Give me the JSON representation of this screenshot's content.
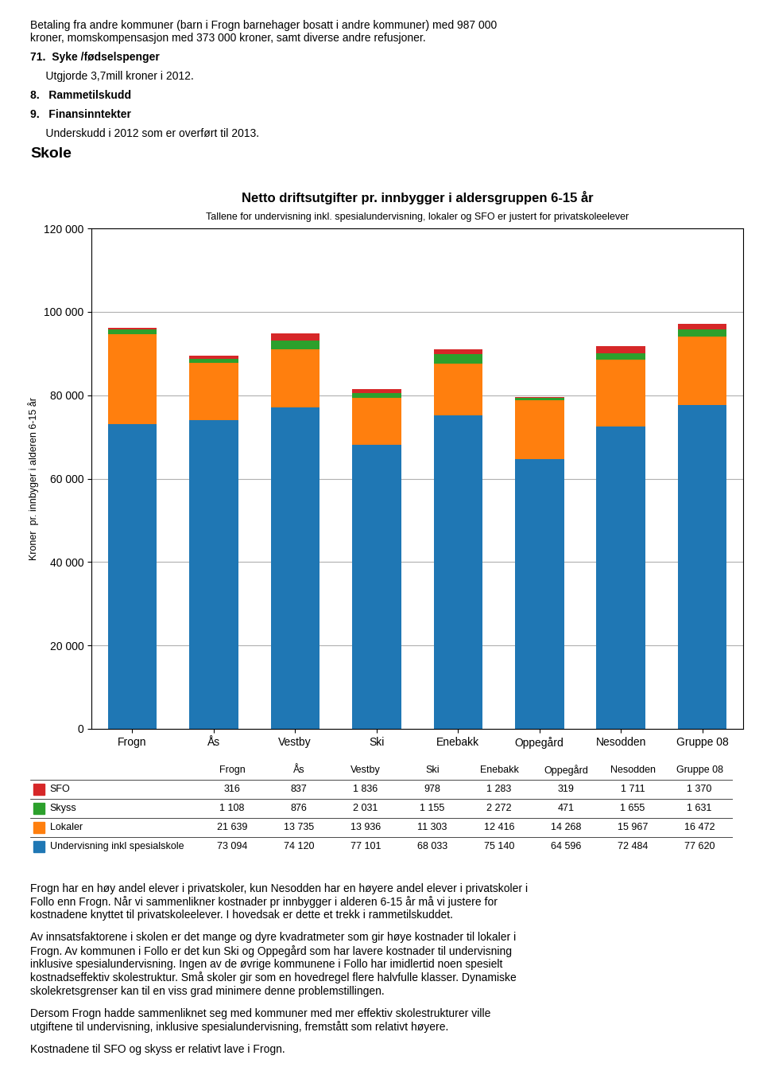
{
  "chart_data": {
    "type": "bar",
    "stacked": true,
    "grid": true,
    "title": "Netto driftsutgifter pr. innbygger i aldersgruppen 6-15 år",
    "subtitle": "Tallene for undervisning inkl. spesialundervisning, lokaler og SFO er justert for privatskoleelever",
    "ylabel": "Kroner  pr. innbyger i alderen 6-15 år",
    "categories": [
      "Frogn",
      "Ås",
      "Vestby",
      "Ski",
      "Enebakk",
      "Oppegård",
      "Nesodden",
      "Gruppe 08"
    ],
    "series": [
      {
        "name": "Undervisning inkl spesialskole",
        "values": [
          73094,
          74120,
          77101,
          68033,
          75140,
          64596,
          72484,
          77620
        ],
        "value_labels": [
          "73 094",
          "74 120",
          "77 101",
          "68 033",
          "75 140",
          "64 596",
          "72 484",
          "77 620"
        ]
      },
      {
        "name": "Lokaler",
        "values": [
          21639,
          13735,
          13936,
          11303,
          12416,
          14268,
          15967,
          16472
        ],
        "value_labels": [
          "21 639",
          "13 735",
          "13 936",
          "11 303",
          "12 416",
          "14 268",
          "15 967",
          "16 472"
        ]
      },
      {
        "name": "Skyss",
        "values": [
          1108,
          876,
          2031,
          1155,
          2272,
          471,
          1655,
          1631
        ],
        "value_labels": [
          "1 108",
          "876",
          "2 031",
          "1 155",
          "2 272",
          "471",
          "1 655",
          "1 631"
        ]
      },
      {
        "name": "SFO",
        "values": [
          316,
          837,
          1836,
          978,
          1283,
          319,
          1711,
          1370
        ],
        "value_labels": [
          "316",
          "837",
          "1 836",
          "978",
          "1 283",
          "319",
          "1 711",
          "1 370"
        ]
      }
    ],
    "ylim": [
      0,
      120000
    ],
    "yticks": [
      0,
      {
        "value": 20000,
        "label": "20 000"
      },
      {
        "value": 40000,
        "label": "40 000"
      },
      {
        "value": 60000,
        "label": "60 000"
      },
      {
        "value": 80000,
        "label": "80 000"
      },
      {
        "value": 100000,
        "label": "100 000"
      },
      {
        "value": 120000,
        "label": "120 000"
      }
    ],
    "annotations": [
      "Betaling fra andre kommuner (barn i Frogn barnehager bosatt i andre kommuner) med 987 000\nkroner, momskompensasjon med 373 000 kroner, samt diverse andre refusjoner.",
      "71.  Syke /fødselspenger",
      "     Utgjorde 3,7mill kroner i 2012.",
      "8.   Rammetilskudd",
      "9.   Finansinntekter",
      "     Underskudd i 2012 som er overført til 2013.",
      "Skole",
      "Frogn har en høy andel elever i privatskoler, kun Nesodden har en høyere andel elever i privatskoler i\nFollo enn Frogn. Når vi sammenlikner kostnader pr innbygger i alderen 6-15 år må vi justere for\nkostnadene knyttet til privatskoleelever. I hovedsak er dette et trekk i rammetilskuddet.",
      "Av innsatsfaktorene i skolen er det mange og dyre kvadratmeter som gir høye kostnader til lokaler i\nFrogn. Av kommunen i Follo er det kun Ski og Oppegård som har lavere kostnader til undervisning\ninklusive spesialundervisning. Ingen av de øvrige kommunene i Follo har imidlertid noen spesielt\nkostnadseffektiv skolestruktur. Små skoler gir som en hovedregel flere halvfulle klasser. Dynamiske\nskolekretsgrenser kan til en viss grad minimere denne problemstillingen.",
      "Dersom Frogn hadde sammenliknet seg med kommuner med mer effektiv skolestrukturer ville\nutgiftene til undervisning, inklusive spesialundervisning, fremstått som relativt høyere.",
      "Kostnadene til SFO og skyss er relativt lave i Frogn."
    ]
  }
}
